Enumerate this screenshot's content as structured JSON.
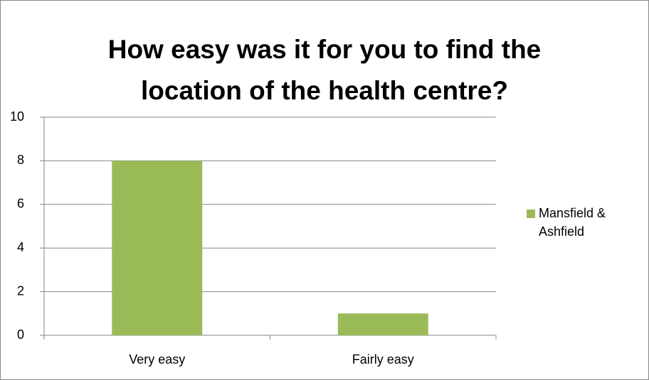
{
  "chart_data": {
    "type": "bar",
    "title": [
      "How easy was it for you to find the",
      "location of the health centre?"
    ],
    "categories": [
      "Very easy",
      "Fairly easy"
    ],
    "series": [
      {
        "name": "Mansfield & Ashfield",
        "color": "#9bbb59",
        "values": [
          8,
          1
        ]
      }
    ],
    "ylim": [
      0,
      10
    ],
    "yticks": [
      0,
      2,
      4,
      6,
      8,
      10
    ],
    "grid": true,
    "legend": "right"
  }
}
